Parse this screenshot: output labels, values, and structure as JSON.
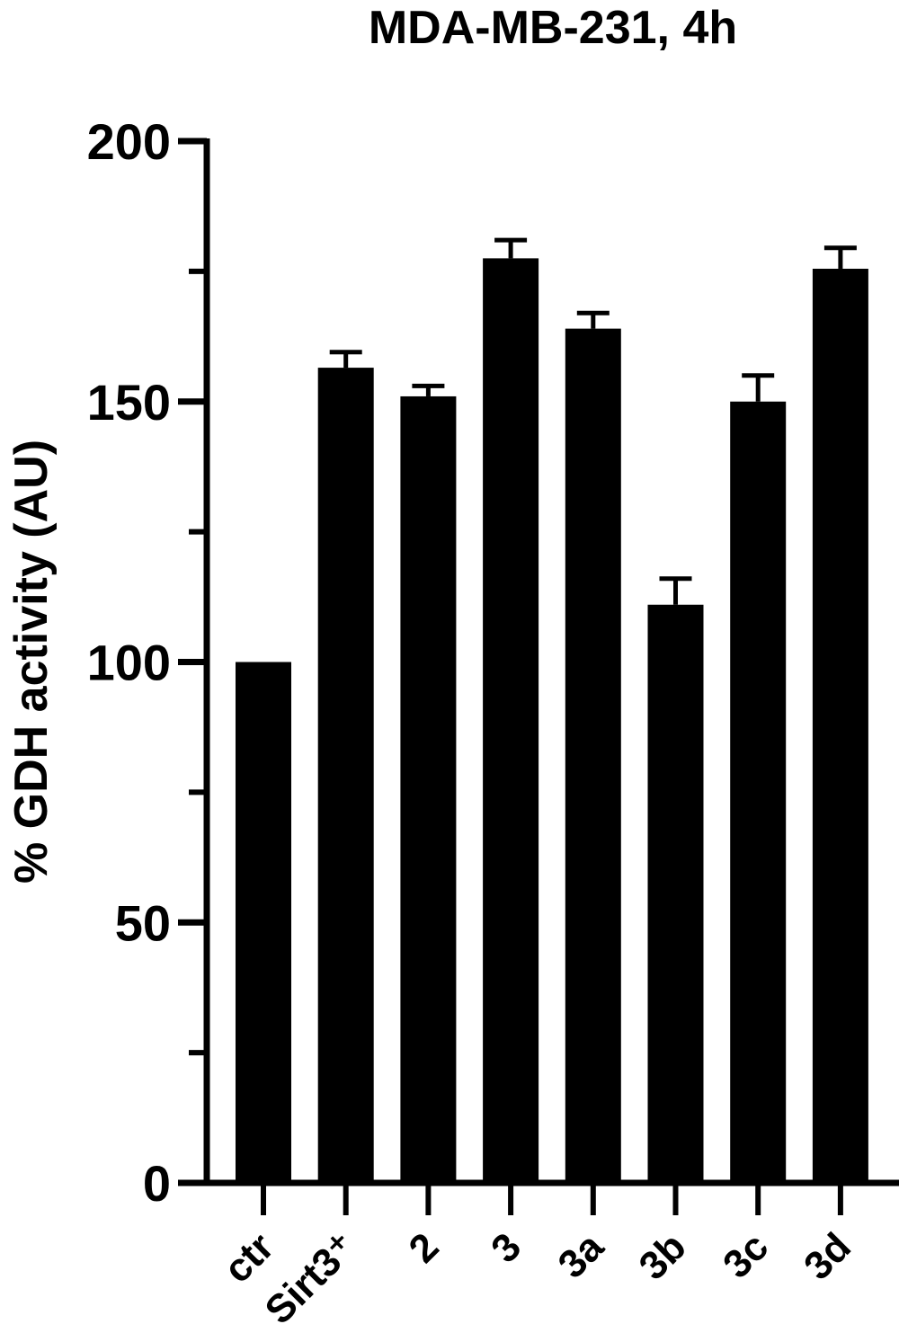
{
  "chart_data": {
    "type": "bar",
    "title": "MDA-MB-231, 4h",
    "ylabel": "% GDH activity (AU)",
    "xlabel": "",
    "categories": [
      "ctr",
      "Sirt3⁺",
      "2",
      "3",
      "3a",
      "3b",
      "3c",
      "3d"
    ],
    "values": [
      100,
      156.5,
      151,
      177.5,
      164,
      111,
      150,
      175.5
    ],
    "errors": [
      0,
      3,
      2,
      3.5,
      3,
      5,
      5,
      4
    ],
    "ylim": [
      0,
      200
    ],
    "yticks": [
      0,
      50,
      100,
      150,
      200
    ],
    "y_minor_ticks": [
      25,
      75,
      125,
      175
    ],
    "grid": false,
    "bar_color": "#000000"
  }
}
